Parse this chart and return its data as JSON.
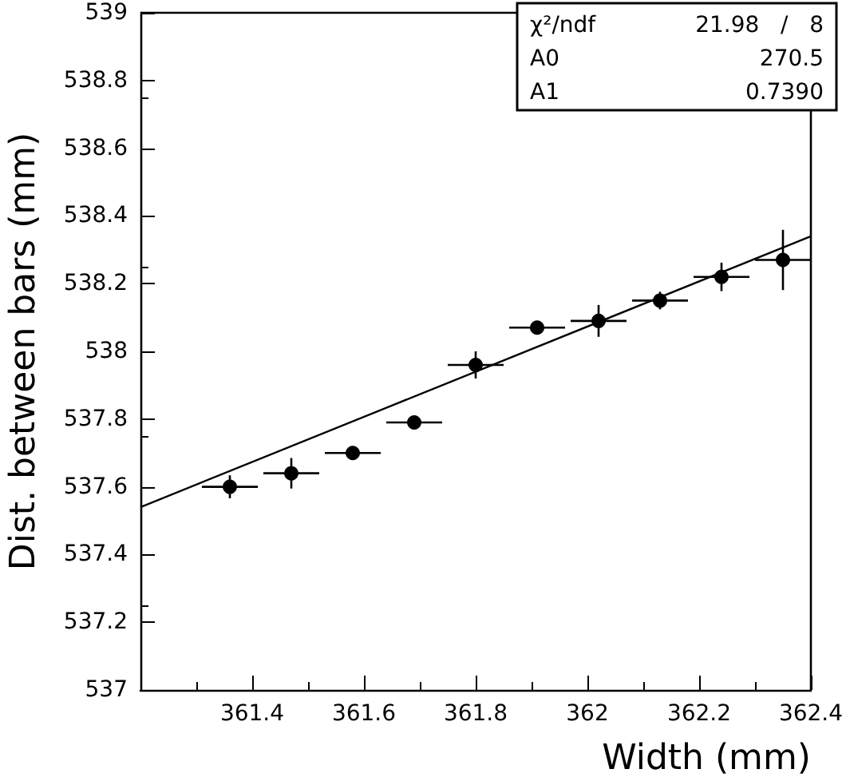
{
  "chart_data": {
    "type": "scatter",
    "xlabel": "Width (mm)",
    "ylabel": "Dist. between bars (mm)",
    "annotations": [
      "χ²/ndf 21.98 / 8",
      "A0 270.5",
      "A1 0.7390"
    ],
    "marker": "circle",
    "grid": false,
    "xlim": [
      361.2,
      362.4
    ],
    "xticks": [
      361.4,
      361.6,
      361.8,
      362,
      362.2,
      362.4
    ],
    "ylim": [
      537,
      539
    ],
    "yticks": [
      537,
      537.2,
      537.4,
      537.6,
      537.8,
      538,
      538.2,
      538.4,
      538.6,
      538.8,
      539
    ],
    "series": [
      {
        "color": "#000000",
        "x": [
          361.36,
          361.47,
          361.58,
          361.69,
          361.8,
          361.91,
          362.02,
          362.13,
          362.24,
          362.35
        ],
        "values": [
          537.6,
          537.64,
          537.7,
          537.79,
          537.96,
          538.07,
          538.09,
          538.15,
          538.22,
          538.27
        ],
        "errors": [
          0.034,
          0.045,
          0.01,
          0.02,
          0.04,
          0.02,
          0.047,
          0.026,
          0.042,
          0.089
        ],
        "xerrors": [
          0.05,
          0.05,
          0.05,
          0.05,
          0.05,
          0.05,
          0.05,
          0.05,
          0.05,
          0.05
        ]
      },
      {
        "type": "line",
        "color": "#000000",
        "marker": "none",
        "x": [
          361.2,
          362.4
        ],
        "values": [
          537.54,
          538.34
        ]
      }
    ]
  }
}
